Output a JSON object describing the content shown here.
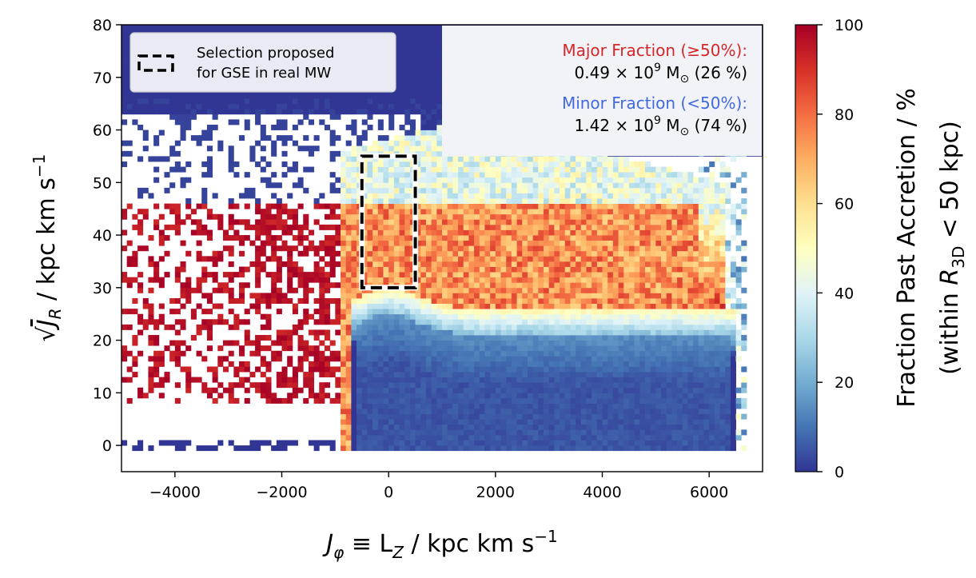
{
  "chart_data": {
    "type": "heatmap",
    "xlabel_parts": [
      "J",
      "φ",
      " ≡ L",
      "Z",
      " / kpc km s",
      "−1"
    ],
    "ylabel_parts": [
      "√",
      "J",
      "R",
      " / kpc km s",
      "−1"
    ],
    "xlim": [
      -5000,
      7000
    ],
    "ylim": [
      -5,
      80
    ],
    "xticks": [
      -4000,
      -2000,
      0,
      2000,
      4000,
      6000
    ],
    "xtick_labels": [
      "−4000",
      "−2000",
      "0",
      "2000",
      "4000",
      "6000"
    ],
    "yticks": [
      0,
      10,
      20,
      30,
      40,
      50,
      60,
      70,
      80
    ],
    "ytick_labels": [
      "0",
      "10",
      "20",
      "30",
      "40",
      "50",
      "60",
      "70",
      "80"
    ],
    "colorbar": {
      "range": [
        0,
        100
      ],
      "ticks": [
        0,
        20,
        40,
        60,
        80,
        100
      ],
      "tick_labels": [
        "0",
        "20",
        "40",
        "60",
        "80",
        "100"
      ],
      "label_line1": "Fraction Past Accretion / %",
      "label_line2_parts": [
        "(within ",
        "R",
        "3D",
        " < 50 kpc)"
      ],
      "colormap": "RdYlBu_r"
    },
    "selection_box": {
      "x": [
        -500,
        500
      ],
      "y": [
        30,
        55
      ],
      "style": "dashed"
    },
    "legend": {
      "placement": "top-left",
      "line1": "Selection proposed",
      "line2": "for GSE in real MW"
    },
    "annotations": {
      "major_label": "Major Fraction (≥50%):",
      "major_value_parts": [
        "0.49 × 10",
        "9",
        " M",
        "⊙",
        " (26 %)"
      ],
      "major_color": "#d62728",
      "minor_label": "Minor Fraction (<50%):",
      "minor_value_parts": [
        "1.42 × 10",
        "9",
        " M",
        "⊙",
        " (74 %)"
      ],
      "minor_color": "#4169e1",
      "box_color": "#f2f3f8"
    },
    "features": [
      {
        "region": "prograde Jphi 0–6000, sqrt(JR) 0–22",
        "fraction_percent": 5
      },
      {
        "region": "Jphi 0–6000, sqrt(JR) 22–27",
        "fraction_percent": 35
      },
      {
        "region": "Jphi -500–5500, sqrt(JR) 27–45",
        "fraction_percent": 75
      },
      {
        "region": "Jphi 500–5000, sqrt(JR) 45–62",
        "fraction_percent": 40
      },
      {
        "region": "retrograde Jphi -5000–-1000, sqrt(JR) 10–45 (sparse)",
        "fraction_percent": 100
      },
      {
        "region": "upper area sqrt(JR) > 55",
        "fraction_percent": 0
      }
    ]
  }
}
